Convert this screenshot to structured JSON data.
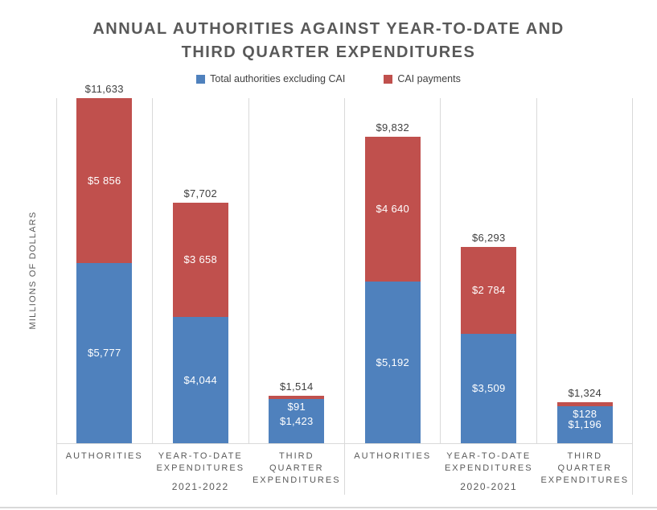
{
  "title": {
    "lines": [
      "ANNUAL AUTHORITIES AGAINST YEAR-TO-DATE AND",
      "THIRD QUARTER EXPENDITURES"
    ]
  },
  "ylabel": "MILLIONS OF DOLLARS",
  "legend": {
    "items": [
      {
        "label": "Total authorities excluding CAI",
        "color": "#4F81BD"
      },
      {
        "label": "CAI payments",
        "color": "#C0504D"
      }
    ]
  },
  "colors": {
    "blue_series": "#4F81BD",
    "red_series": "#C0504D",
    "gridline": "#D9D9D9",
    "axis_text": "#595959",
    "data_label": "#404040"
  },
  "chart_data": {
    "type": "bar",
    "stacked": true,
    "title": "ANNUAL AUTHORITIES AGAINST YEAR-TO-DATE AND THIRD QUARTER EXPENDITURES",
    "ylabel": "MILLIONS OF DOLLARS",
    "legend_position": "top",
    "grid": "vertical-category-separators",
    "ylim": [
      0,
      11100
    ],
    "categories": [
      "AUTHORITIES",
      "YEAR-TO-DATE EXPENDITURES",
      "THIRD QUARTER EXPENDITURES",
      "AUTHORITIES",
      "YEAR-TO-DATE EXPENDITURES",
      "THIRD QUARTER EXPENDITURES"
    ],
    "groups": [
      "2021-2022",
      "2020-2021"
    ],
    "series": [
      {
        "name": "Total authorities excluding CAI",
        "color": "#4F81BD",
        "values": [
          5777,
          4044,
          1423,
          5192,
          3509,
          1196
        ],
        "labels": [
          "$5,777",
          "$4,044",
          "$1,423",
          "$5,192",
          "$3,509",
          "$1,196"
        ]
      },
      {
        "name": "CAI payments",
        "color": "#C0504D",
        "values": [
          5856,
          3658,
          91,
          4640,
          2784,
          128
        ],
        "labels": [
          "$5 856",
          "$3 658",
          "$91",
          "$4 640",
          "$2 784",
          "$128"
        ]
      }
    ],
    "totals": [
      11633,
      7702,
      1514,
      9832,
      6293,
      1324
    ],
    "total_labels": [
      "$11,633",
      "$7,702",
      "$1,514",
      "$9,832",
      "$6,293",
      "$1,324"
    ]
  }
}
